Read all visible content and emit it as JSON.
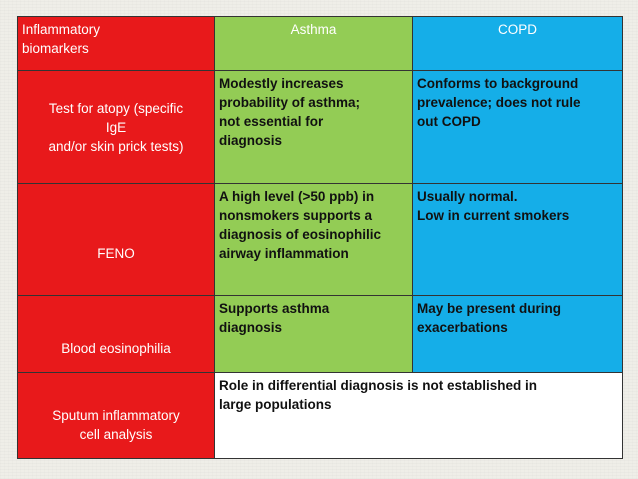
{
  "table": {
    "header": {
      "corner": [
        "Inflammatory",
        "biomarkers"
      ],
      "asthma": "Asthma",
      "copd": "COPD"
    },
    "rows": [
      {
        "label": [
          "Test for atopy (specific",
          "IgE",
          "and/or skin prick tests)"
        ],
        "asthma": [
          "Modestly increases",
          "probability of asthma;",
          "not essential for",
          "diagnosis"
        ],
        "copd": [
          "Conforms to background",
          "prevalence; does not rule",
          "out COPD"
        ]
      },
      {
        "label": [
          "FENO"
        ],
        "asthma": [
          "A high level (>50 ppb) in",
          "nonsmokers supports a",
          "diagnosis of eosinophilic",
          "airway inflammation"
        ],
        "copd": [
          "Usually normal.",
          "Low in current smokers"
        ]
      },
      {
        "label": [
          "Blood eosinophilia"
        ],
        "asthma": [
          "Supports asthma",
          "diagnosis"
        ],
        "copd": [
          "May be present during",
          "exacerbations"
        ]
      },
      {
        "label": [
          "Sputum inflammatory",
          "cell analysis"
        ],
        "merged": [
          "Role in differential diagnosis is not established in",
          "large populations"
        ]
      }
    ]
  },
  "colors": {
    "red": "#e8191b",
    "green": "#93cc55",
    "blue": "#15aee8",
    "white": "#ffffff"
  }
}
